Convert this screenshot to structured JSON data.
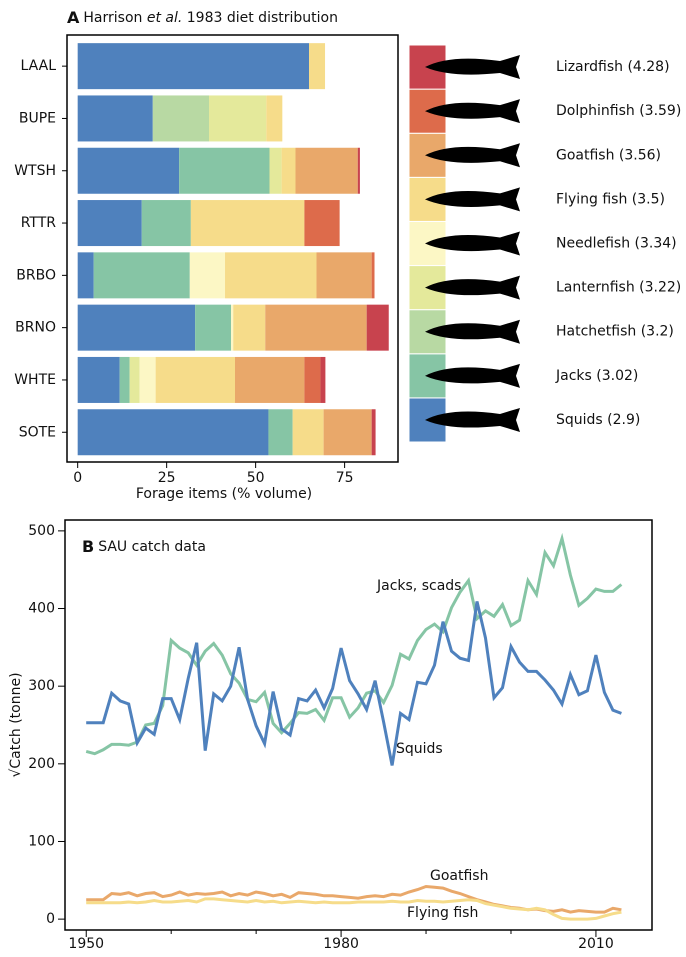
{
  "chart_data": [
    {
      "type": "bar",
      "orientation": "horizontal",
      "stacked": true,
      "panel": "A",
      "title_parts": [
        "Harrison ",
        "et al.",
        " 1983 diet distribution"
      ],
      "xlabel": "Forage items (% volume)",
      "categories": [
        "LAAL",
        "BUPE",
        "WTSH",
        "RTTR",
        "BRBO",
        "BRNO",
        "WHTE",
        "SOTE"
      ],
      "xlim": [
        -3,
        90
      ],
      "xticks": [
        0,
        25,
        50,
        75
      ],
      "series": [
        {
          "name": "Squids (2.9)",
          "color": "#4f81bd",
          "values": [
            65,
            21.1,
            28.5,
            18,
            4.5,
            33,
            11.8,
            53.6
          ]
        },
        {
          "name": "Jacks (3.02)",
          "color": "#86c5a5",
          "values": [
            0,
            0,
            25.4,
            13.8,
            27,
            10.1,
            2.8,
            6.8
          ]
        },
        {
          "name": "Hatchetfish (3.2)",
          "color": "#b8d9a3",
          "values": [
            0,
            15.8,
            0,
            0,
            0,
            0,
            0,
            0
          ]
        },
        {
          "name": "Lanternfish (3.22)",
          "color": "#e4e99b",
          "values": [
            0,
            16.1,
            3.4,
            0,
            0,
            0,
            2.8,
            0
          ]
        },
        {
          "name": "Needlefish (3.34)",
          "color": "#fcf7c5",
          "values": [
            0,
            0,
            0,
            0,
            9.9,
            0.6,
            4.5,
            0
          ]
        },
        {
          "name": "Flying fish (3.5)",
          "color": "#f6dc8a",
          "values": [
            4.5,
            4.5,
            3.9,
            31.9,
            25.7,
            9,
            22.3,
            8.7
          ]
        },
        {
          "name": "Goatfish (3.56)",
          "color": "#e9a86a",
          "values": [
            0,
            0,
            17.5,
            0,
            15.5,
            28.5,
            19.5,
            13.5
          ]
        },
        {
          "name": "Dolphinfish (3.59)",
          "color": "#dd6b4b",
          "values": [
            0,
            0,
            0,
            9.9,
            0.8,
            0,
            4.5,
            0
          ]
        },
        {
          "name": "Lizardfish (4.28)",
          "color": "#c8434e",
          "values": [
            0,
            0,
            0.6,
            0,
            0,
            6.2,
            1.4,
            1.1
          ]
        }
      ]
    },
    {
      "type": "line",
      "panel": "B",
      "title": "SAU catch data",
      "ylabel": "√Catch (tonne)",
      "xlim": [
        1947.5,
        2016.6
      ],
      "xticks": [
        1950,
        1980,
        2010
      ],
      "x_minor_ticks": [
        1960,
        1970,
        1990,
        2000
      ],
      "ylim": [
        -14,
        514
      ],
      "yticks": [
        0,
        100,
        200,
        300,
        400,
        500
      ],
      "x": [
        1950,
        1951,
        1952,
        1953,
        1954,
        1955,
        1956,
        1957,
        1958,
        1959,
        1960,
        1961,
        1962,
        1963,
        1964,
        1965,
        1966,
        1967,
        1968,
        1969,
        1970,
        1971,
        1972,
        1973,
        1974,
        1975,
        1976,
        1977,
        1978,
        1979,
        1980,
        1981,
        1982,
        1983,
        1984,
        1985,
        1986,
        1987,
        1988,
        1989,
        1990,
        1991,
        1992,
        1993,
        1994,
        1995,
        1996,
        1997,
        1998,
        1999,
        2000,
        2001,
        2002,
        2003,
        2004,
        2005,
        2006,
        2007,
        2008,
        2009,
        2010,
        2011,
        2012,
        2013
      ],
      "series": [
        {
          "name": "Jacks, scads",
          "color": "#86c5a5",
          "values": [
            216,
            213,
            218,
            225,
            225,
            224,
            228,
            250,
            252,
            275,
            359,
            349,
            343,
            327,
            345,
            355,
            340,
            316,
            304,
            283,
            280,
            292,
            252,
            240,
            252,
            266,
            265,
            270,
            256,
            285,
            285,
            260,
            272,
            291,
            294,
            279,
            301,
            341,
            335,
            359,
            373,
            380,
            370,
            401,
            421,
            436,
            387,
            397,
            390,
            405,
            378,
            385,
            436,
            418,
            472,
            455,
            490,
            443,
            404,
            413,
            425,
            422,
            422,
            431
          ]
        },
        {
          "name": "Squids",
          "color": "#4f81bd",
          "values": [
            253,
            253,
            253,
            291,
            281,
            277,
            227,
            246,
            238,
            284,
            284,
            257,
            310,
            356,
            217,
            290,
            281,
            300,
            350,
            283,
            249,
            226,
            293,
            245,
            237,
            284,
            281,
            295,
            272,
            297,
            349,
            307,
            290,
            270,
            307,
            254,
            198,
            265,
            257,
            305,
            303,
            327,
            383,
            345,
            336,
            333,
            409,
            362,
            285,
            298,
            351,
            331,
            319,
            319,
            308,
            295,
            277,
            315,
            289,
            294,
            340,
            292,
            269,
            265
          ]
        },
        {
          "name": "Goatfish",
          "color": "#e9a86a",
          "values": [
            25,
            25,
            25,
            33,
            32,
            34,
            30,
            33,
            34,
            29,
            31,
            35,
            31,
            33,
            32,
            33,
            35,
            30,
            33,
            31,
            35,
            33,
            30,
            32,
            28,
            34,
            33,
            32,
            30,
            30,
            29,
            28,
            27,
            29,
            30,
            29,
            32,
            31,
            35,
            38,
            42,
            41,
            40,
            36,
            33,
            29,
            25,
            22,
            19,
            17,
            15,
            14,
            12,
            13,
            11,
            10,
            12,
            9,
            11,
            10,
            9,
            9,
            14,
            12
          ]
        },
        {
          "name": "Flying fish",
          "color": "#f6dc8a",
          "values": [
            21,
            21,
            21,
            21,
            21,
            22,
            21,
            22,
            24,
            22,
            22,
            23,
            24,
            22,
            26,
            26,
            25,
            24,
            23,
            22,
            24,
            22,
            23,
            21,
            22,
            23,
            22,
            21,
            22,
            21,
            21,
            21,
            22,
            22,
            22,
            22,
            23,
            22,
            22,
            24,
            23,
            23,
            22,
            23,
            24,
            25,
            24,
            20,
            18,
            16,
            14,
            13,
            12,
            14,
            12,
            6,
            1,
            0,
            0,
            0,
            1,
            4,
            7,
            9
          ]
        }
      ]
    }
  ]
}
